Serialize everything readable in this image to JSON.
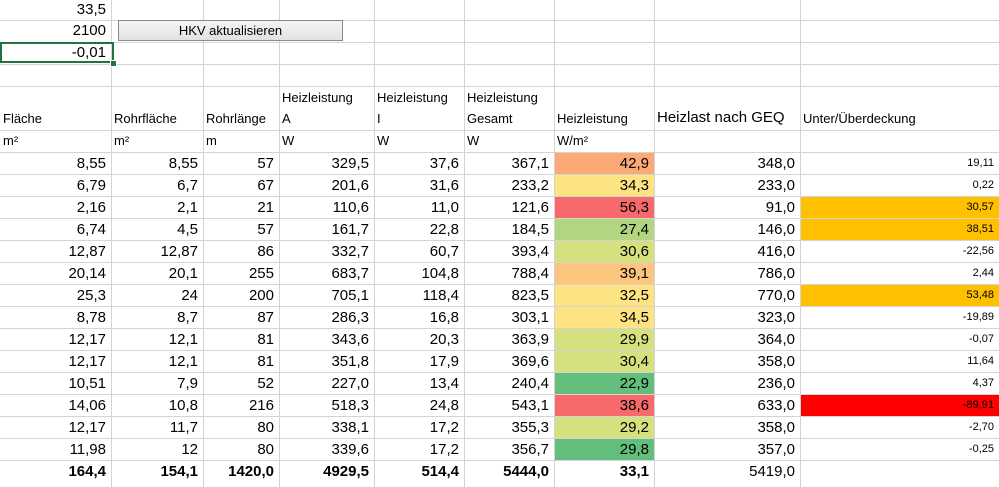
{
  "top_cells": {
    "val1": "33,5",
    "val2": "2100",
    "val3": "-0,01",
    "button_label": "HKV aktualisieren"
  },
  "headers": {
    "flaeche": "Fläche",
    "rohrflaeche": "Rohrfläche",
    "rohrlaenge": "Rohrlänge",
    "hl_a_1": "Heizleistung",
    "hl_a_2": "A",
    "hl_i_1": "Heizleistung",
    "hl_i_2": "I",
    "hl_g_1": "Heizleistung",
    "hl_g_2": "Gesamt",
    "hl": "Heizleistung",
    "heizlast": "Heizlast nach GEQ",
    "unter": "Unter/Überdeckung"
  },
  "units": {
    "flaeche": "m²",
    "rohrflaeche": "m²",
    "rohrlaenge": "m",
    "hl_a": "W",
    "hl_i": "W",
    "hl_g": "W",
    "hl_wm2": "W/m²"
  },
  "colors": {
    "grid": "#d4d4d4",
    "heat_red": "#f8696b",
    "heat_orange": "#fbaa77",
    "heat_lightorange": "#fcc57d",
    "heat_yellow": "#fee382",
    "heat_yellowgreen": "#d7e07f",
    "heat_lightgreen": "#b1d580",
    "heat_green": "#63be7b",
    "over_orange": "#ffc000",
    "over_red": "#ff0000"
  },
  "rows": [
    {
      "flaeche": "8,55",
      "rohrflaeche": "8,55",
      "rohrlaenge": "57",
      "hl_a": "329,5",
      "hl_i": "37,6",
      "hl_g": "367,1",
      "hl_wm2": "42,9",
      "heizlast": "348,0",
      "unter": "19,11",
      "hl_color": "heat_orange",
      "unter_color": ""
    },
    {
      "flaeche": "6,79",
      "rohrflaeche": "6,7",
      "rohrlaenge": "67",
      "hl_a": "201,6",
      "hl_i": "31,6",
      "hl_g": "233,2",
      "hl_wm2": "34,3",
      "heizlast": "233,0",
      "unter": "0,22",
      "hl_color": "heat_yellow",
      "unter_color": ""
    },
    {
      "flaeche": "2,16",
      "rohrflaeche": "2,1",
      "rohrlaenge": "21",
      "hl_a": "110,6",
      "hl_i": "11,0",
      "hl_g": "121,6",
      "hl_wm2": "56,3",
      "heizlast": "91,0",
      "unter": "30,57",
      "hl_color": "heat_red",
      "unter_color": "over_orange"
    },
    {
      "flaeche": "6,74",
      "rohrflaeche": "4,5",
      "rohrlaenge": "57",
      "hl_a": "161,7",
      "hl_i": "22,8",
      "hl_g": "184,5",
      "hl_wm2": "27,4",
      "heizlast": "146,0",
      "unter": "38,51",
      "hl_color": "heat_lightgreen",
      "unter_color": "over_orange"
    },
    {
      "flaeche": "12,87",
      "rohrflaeche": "12,87",
      "rohrlaenge": "86",
      "hl_a": "332,7",
      "hl_i": "60,7",
      "hl_g": "393,4",
      "hl_wm2": "30,6",
      "heizlast": "416,0",
      "unter": "-22,56",
      "hl_color": "heat_yellowgreen",
      "unter_color": ""
    },
    {
      "flaeche": "20,14",
      "rohrflaeche": "20,1",
      "rohrlaenge": "255",
      "hl_a": "683,7",
      "hl_i": "104,8",
      "hl_g": "788,4",
      "hl_wm2": "39,1",
      "heizlast": "786,0",
      "unter": "2,44",
      "hl_color": "heat_lightorange",
      "unter_color": ""
    },
    {
      "flaeche": "25,3",
      "rohrflaeche": "24",
      "rohrlaenge": "200",
      "hl_a": "705,1",
      "hl_i": "118,4",
      "hl_g": "823,5",
      "hl_wm2": "32,5",
      "heizlast": "770,0",
      "unter": "53,48",
      "hl_color": "heat_yellow",
      "unter_color": "over_orange"
    },
    {
      "flaeche": "8,78",
      "rohrflaeche": "8,7",
      "rohrlaenge": "87",
      "hl_a": "286,3",
      "hl_i": "16,8",
      "hl_g": "303,1",
      "hl_wm2": "34,5",
      "heizlast": "323,0",
      "unter": "-19,89",
      "hl_color": "heat_yellow",
      "unter_color": ""
    },
    {
      "flaeche": "12,17",
      "rohrflaeche": "12,1",
      "rohrlaenge": "81",
      "hl_a": "343,6",
      "hl_i": "20,3",
      "hl_g": "363,9",
      "hl_wm2": "29,9",
      "heizlast": "364,0",
      "unter": "-0,07",
      "hl_color": "heat_yellowgreen",
      "unter_color": ""
    },
    {
      "flaeche": "12,17",
      "rohrflaeche": "12,1",
      "rohrlaenge": "81",
      "hl_a": "351,8",
      "hl_i": "17,9",
      "hl_g": "369,6",
      "hl_wm2": "30,4",
      "heizlast": "358,0",
      "unter": "11,64",
      "hl_color": "heat_yellowgreen",
      "unter_color": ""
    },
    {
      "flaeche": "10,51",
      "rohrflaeche": "7,9",
      "rohrlaenge": "52",
      "hl_a": "227,0",
      "hl_i": "13,4",
      "hl_g": "240,4",
      "hl_wm2": "22,9",
      "heizlast": "236,0",
      "unter": "4,37",
      "hl_color": "heat_green",
      "unter_color": ""
    },
    {
      "flaeche": "14,06",
      "rohrflaeche": "10,8",
      "rohrlaenge": "216",
      "hl_a": "518,3",
      "hl_i": "24,8",
      "hl_g": "543,1",
      "hl_wm2": "38,6",
      "heizlast": "633,0",
      "unter": "-89,91",
      "hl_color": "heat_red",
      "unter_color": "over_red"
    },
    {
      "flaeche": "12,17",
      "rohrflaeche": "11,7",
      "rohrlaenge": "80",
      "hl_a": "338,1",
      "hl_i": "17,2",
      "hl_g": "355,3",
      "hl_wm2": "29,2",
      "heizlast": "358,0",
      "unter": "-2,70",
      "hl_color": "heat_yellowgreen",
      "unter_color": ""
    },
    {
      "flaeche": "11,98",
      "rohrflaeche": "12",
      "rohrlaenge": "80",
      "hl_a": "339,6",
      "hl_i": "17,2",
      "hl_g": "356,7",
      "hl_wm2": "29,8",
      "heizlast": "357,0",
      "unter": "-0,25",
      "hl_color": "heat_green",
      "unter_color": ""
    }
  ],
  "totals": {
    "flaeche": "164,4",
    "rohrflaeche": "154,1",
    "rohrlaenge": "1420,0",
    "hl_a": "4929,5",
    "hl_i": "514,4",
    "hl_g": "5444,0",
    "hl_wm2": "33,1",
    "heizlast": "5419,0"
  }
}
